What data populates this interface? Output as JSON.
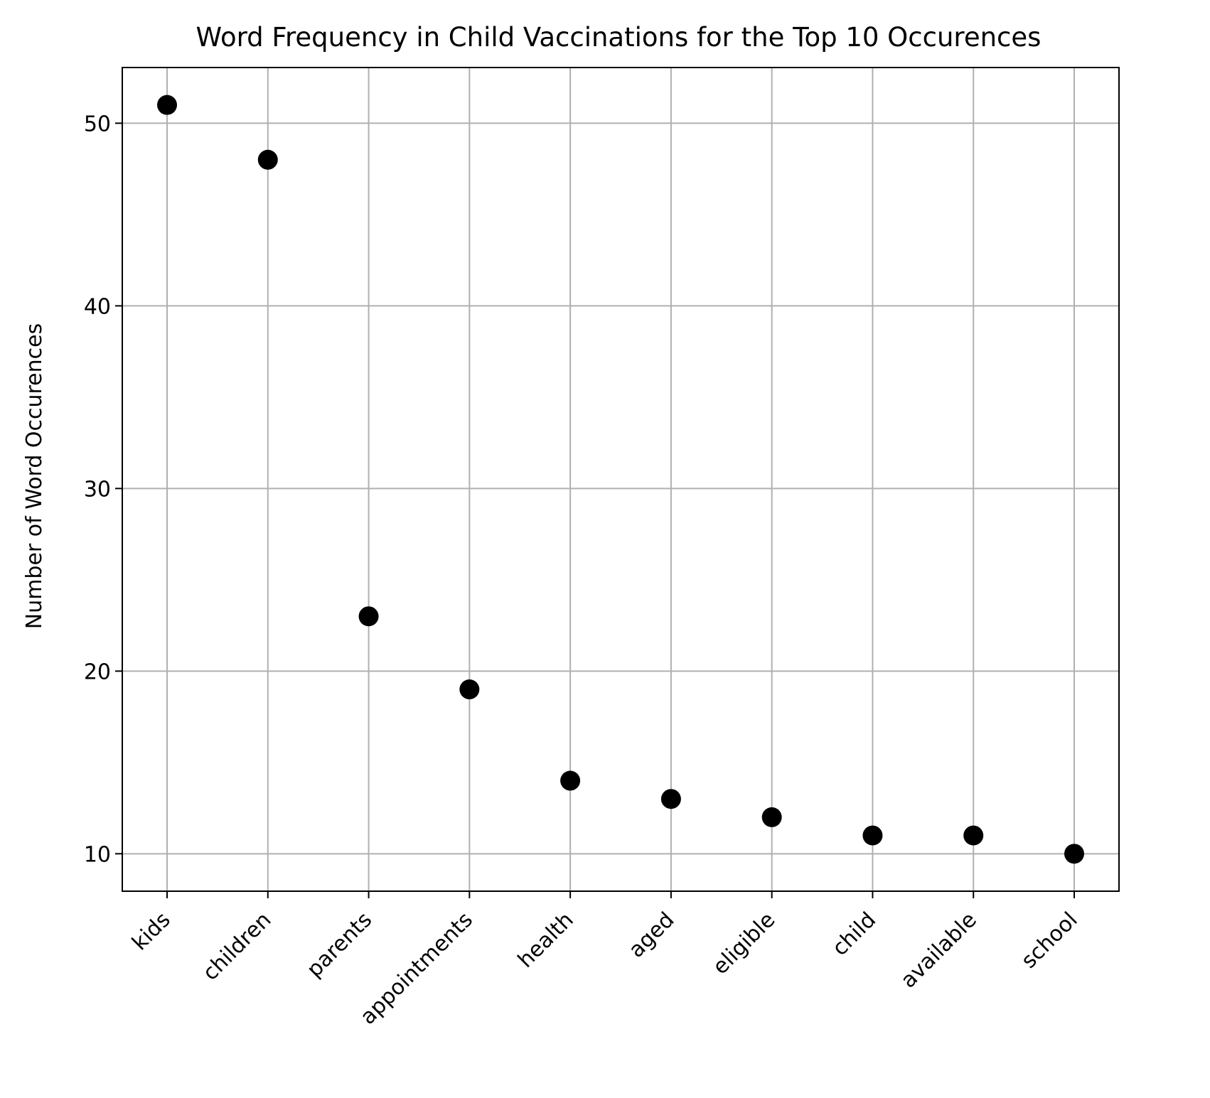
{
  "chart_data": {
    "type": "scatter",
    "title": "Word Frequency in Child Vaccinations for the Top 10 Occurences",
    "xlabel": "",
    "ylabel": "Number of Word Occurences",
    "categories": [
      "kids",
      "children",
      "parents",
      "appointments",
      "health",
      "aged",
      "eligible",
      "child",
      "available",
      "school"
    ],
    "values": [
      51,
      48,
      23,
      19,
      14,
      13,
      12,
      11,
      11,
      10
    ],
    "ylim": [
      7.95,
      53.05
    ],
    "yticks": [
      10,
      20,
      30,
      40,
      50
    ],
    "ytick_labels": [
      "10",
      "20",
      "30",
      "40",
      "50"
    ],
    "grid": true,
    "marker_color": "#000000",
    "grid_color": "#b0b0b0"
  }
}
